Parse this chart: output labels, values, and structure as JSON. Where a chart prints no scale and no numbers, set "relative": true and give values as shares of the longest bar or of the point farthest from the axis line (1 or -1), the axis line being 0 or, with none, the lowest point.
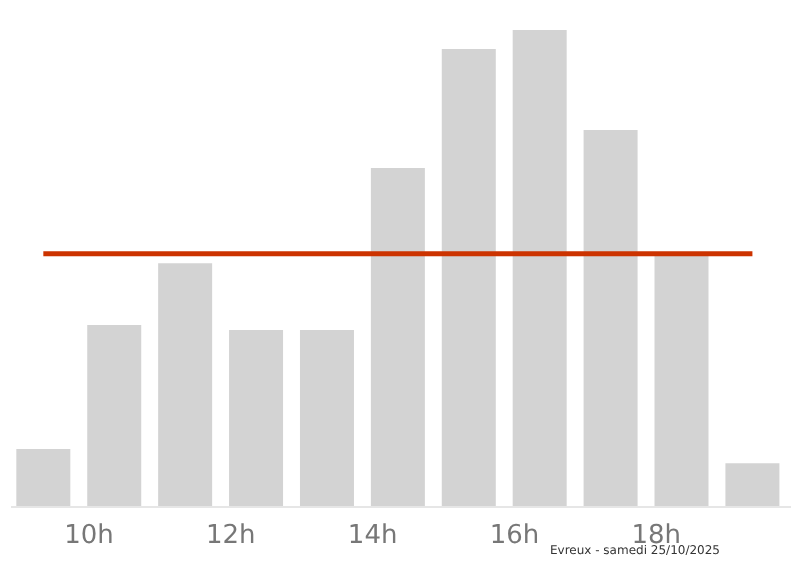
{
  "chart_data": {
    "type": "bar",
    "relative": true,
    "x": [
      9.37,
      10.37,
      11.37,
      12.37,
      13.37,
      14.37,
      15.37,
      16.37,
      17.37,
      18.37,
      19.37
    ],
    "values": [
      0.12,
      0.38,
      0.51,
      0.37,
      0.37,
      0.71,
      0.96,
      1,
      0.79,
      0.53,
      0.09
    ],
    "color": "#d3d3d3",
    "xlim": [
      8.9,
      19.9
    ],
    "xticks": [
      {
        "value": 10,
        "label": "10h"
      },
      {
        "value": 12,
        "label": "12h"
      },
      {
        "value": 14,
        "label": "14h"
      },
      {
        "value": 16,
        "label": "16h"
      },
      {
        "value": 18,
        "label": "18h"
      }
    ],
    "ref_lines": [
      {
        "axis": "y",
        "value": 0.53,
        "label": null,
        "color": "#cc3300"
      }
    ],
    "annotations": [
      "Evreux - samedi 25/10/2025"
    ],
    "grid": false
  }
}
